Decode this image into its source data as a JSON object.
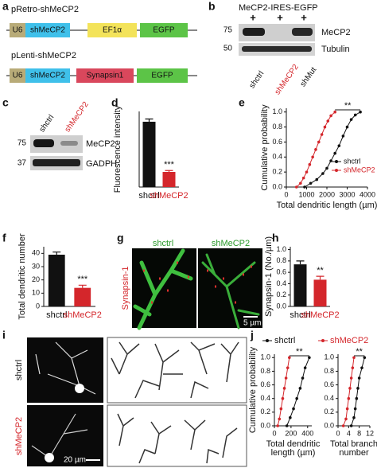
{
  "panel_labels": [
    "a",
    "b",
    "c",
    "d",
    "e",
    "f",
    "g",
    "h",
    "i",
    "j"
  ],
  "constructs": [
    {
      "name": "pRetro-shMeCP2",
      "elements": [
        "U6",
        "shMeCP2",
        "EF1α",
        "EGFP"
      ]
    },
    {
      "name": "pLenti-shMeCP2",
      "elements": [
        "U6",
        "shMeCP2",
        "Synapsin1",
        "EGFP"
      ]
    }
  ],
  "blot_b": {
    "header": "MeCP2-IRES-EGFP",
    "signs": [
      "+",
      "+",
      "+"
    ],
    "markers": [
      75,
      50
    ],
    "bands": [
      "MeCP2",
      "Tubulin"
    ],
    "lanes": [
      "shctrl",
      "shMeCP2",
      "shMut"
    ]
  },
  "blot_c": {
    "markers": [
      75,
      37
    ],
    "bands": [
      "MeCP2",
      "GADPH"
    ],
    "lanes": [
      "shctrl",
      "shMeCP2"
    ]
  },
  "image_g": {
    "columns": [
      "shctrl",
      "shMeCP2"
    ],
    "stain": "Synapsin-1",
    "scale_bar": "5 µm"
  },
  "image_i": {
    "rows": [
      "shctrl",
      "shMeCP2"
    ],
    "scale_bar": "20 µm"
  },
  "chart_data": [
    {
      "type": "bar",
      "ylabel": "Fluorescence intensity",
      "categories": [
        "shctrl",
        "shMeCP2"
      ],
      "values": [
        95,
        22
      ],
      "errors": [
        4,
        2
      ],
      "colors": [
        "#111111",
        "#d4262b"
      ],
      "ylim": [
        0,
        110
      ],
      "annotation": "***"
    },
    {
      "type": "line",
      "ylabel": "Cumulative probability",
      "xlabel": "Total dendritic length (µm)",
      "xlim": [
        0,
        4000
      ],
      "xticks": [
        0,
        1000,
        2000,
        3000,
        4000
      ],
      "ylim": [
        0,
        1.05
      ],
      "yticks": [
        {
          "value": 0,
          "label": "0.0"
        },
        0.2,
        0.4,
        0.6,
        0.8,
        {
          "value": 1,
          "label": "1.0"
        }
      ],
      "legend": "lower right",
      "annotation": "**",
      "series": [
        {
          "name": "shctrl",
          "color": "#111111",
          "x": [
            900,
            1200,
            1500,
            1800,
            2000,
            2200,
            2400,
            2600,
            2800,
            3000,
            3200,
            3400,
            3650
          ],
          "values": [
            0,
            0.05,
            0.1,
            0.18,
            0.25,
            0.35,
            0.45,
            0.55,
            0.68,
            0.8,
            0.9,
            0.96,
            1.0
          ]
        },
        {
          "name": "shMeCP2",
          "color": "#d4262b",
          "x": [
            500,
            700,
            850,
            1000,
            1150,
            1300,
            1450,
            1600,
            1750,
            1900,
            2050,
            2200,
            2400
          ],
          "values": [
            0,
            0.05,
            0.12,
            0.2,
            0.3,
            0.4,
            0.5,
            0.6,
            0.7,
            0.8,
            0.88,
            0.95,
            1.0
          ]
        }
      ]
    },
    {
      "type": "bar",
      "ylabel": "Total dendritic number",
      "categories": [
        "shctrl",
        "shMeCP2"
      ],
      "values": [
        39,
        14
      ],
      "errors": [
        2,
        2
      ],
      "colors": [
        "#111111",
        "#d4262b"
      ],
      "ylim": [
        0,
        45
      ],
      "yticks": [
        0,
        10,
        20,
        30,
        40
      ],
      "annotation": "***"
    },
    {
      "type": "bar",
      "ylabel": "Synapsin-1 (No./µm)",
      "categories": [
        "shctrl",
        "shMeCP2"
      ],
      "values": [
        0.74,
        0.47
      ],
      "errors": [
        0.06,
        0.06
      ],
      "colors": [
        "#111111",
        "#d4262b"
      ],
      "ylim": [
        0,
        1.05
      ],
      "yticks": [
        {
          "value": 0,
          "label": "0.0"
        },
        0.2,
        0.4,
        0.6,
        0.8,
        {
          "value": 1,
          "label": "1.0"
        }
      ],
      "annotation": "**"
    },
    {
      "type": "line",
      "ylabel": "Cumulative probability",
      "xlabel": [
        "Total dendritic",
        "length (µm)"
      ],
      "xlim": [
        0,
        450
      ],
      "xticks": [
        0,
        200,
        400
      ],
      "ylim": [
        0,
        1.05
      ],
      "yticks": [
        {
          "value": 0,
          "label": "0.0"
        },
        0.2,
        0.4,
        0.6,
        0.8,
        {
          "value": 1,
          "label": "1.0"
        }
      ],
      "legend": "top",
      "annotation": "**",
      "series": [
        {
          "name": "shctrl",
          "color": "#111111",
          "x": [
            150,
            190,
            230,
            270,
            310,
            340,
            370,
            420
          ],
          "values": [
            0,
            0.12,
            0.25,
            0.4,
            0.55,
            0.7,
            0.85,
            1.0
          ]
        },
        {
          "name": "shMeCP2",
          "color": "#d4262b",
          "x": [
            40,
            60,
            80,
            100,
            120,
            140,
            160,
            180
          ],
          "values": [
            0,
            0.1,
            0.25,
            0.4,
            0.55,
            0.7,
            0.85,
            1.0
          ]
        }
      ]
    },
    {
      "type": "line",
      "xlabel": [
        "Total branch",
        "number"
      ],
      "xlim": [
        0,
        12
      ],
      "xticks": [
        0,
        4,
        8,
        12
      ],
      "ylim": [
        0,
        1.05
      ],
      "yticks": [
        {
          "value": 0,
          "label": "0.0"
        },
        0.2,
        0.4,
        0.6,
        0.8,
        {
          "value": 1,
          "label": "1.0"
        }
      ],
      "annotation": "**",
      "series": [
        {
          "color": "#111111",
          "x": [
            5,
            6,
            6.5,
            7,
            7.5,
            8,
            9,
            10
          ],
          "values": [
            0,
            0.12,
            0.25,
            0.4,
            0.55,
            0.7,
            0.85,
            1.0
          ]
        },
        {
          "color": "#d4262b",
          "x": [
            2,
            3,
            3.5,
            4,
            4.5,
            5,
            5.5,
            6
          ],
          "values": [
            0,
            0.1,
            0.25,
            0.4,
            0.55,
            0.7,
            0.85,
            1.0
          ]
        }
      ]
    }
  ]
}
